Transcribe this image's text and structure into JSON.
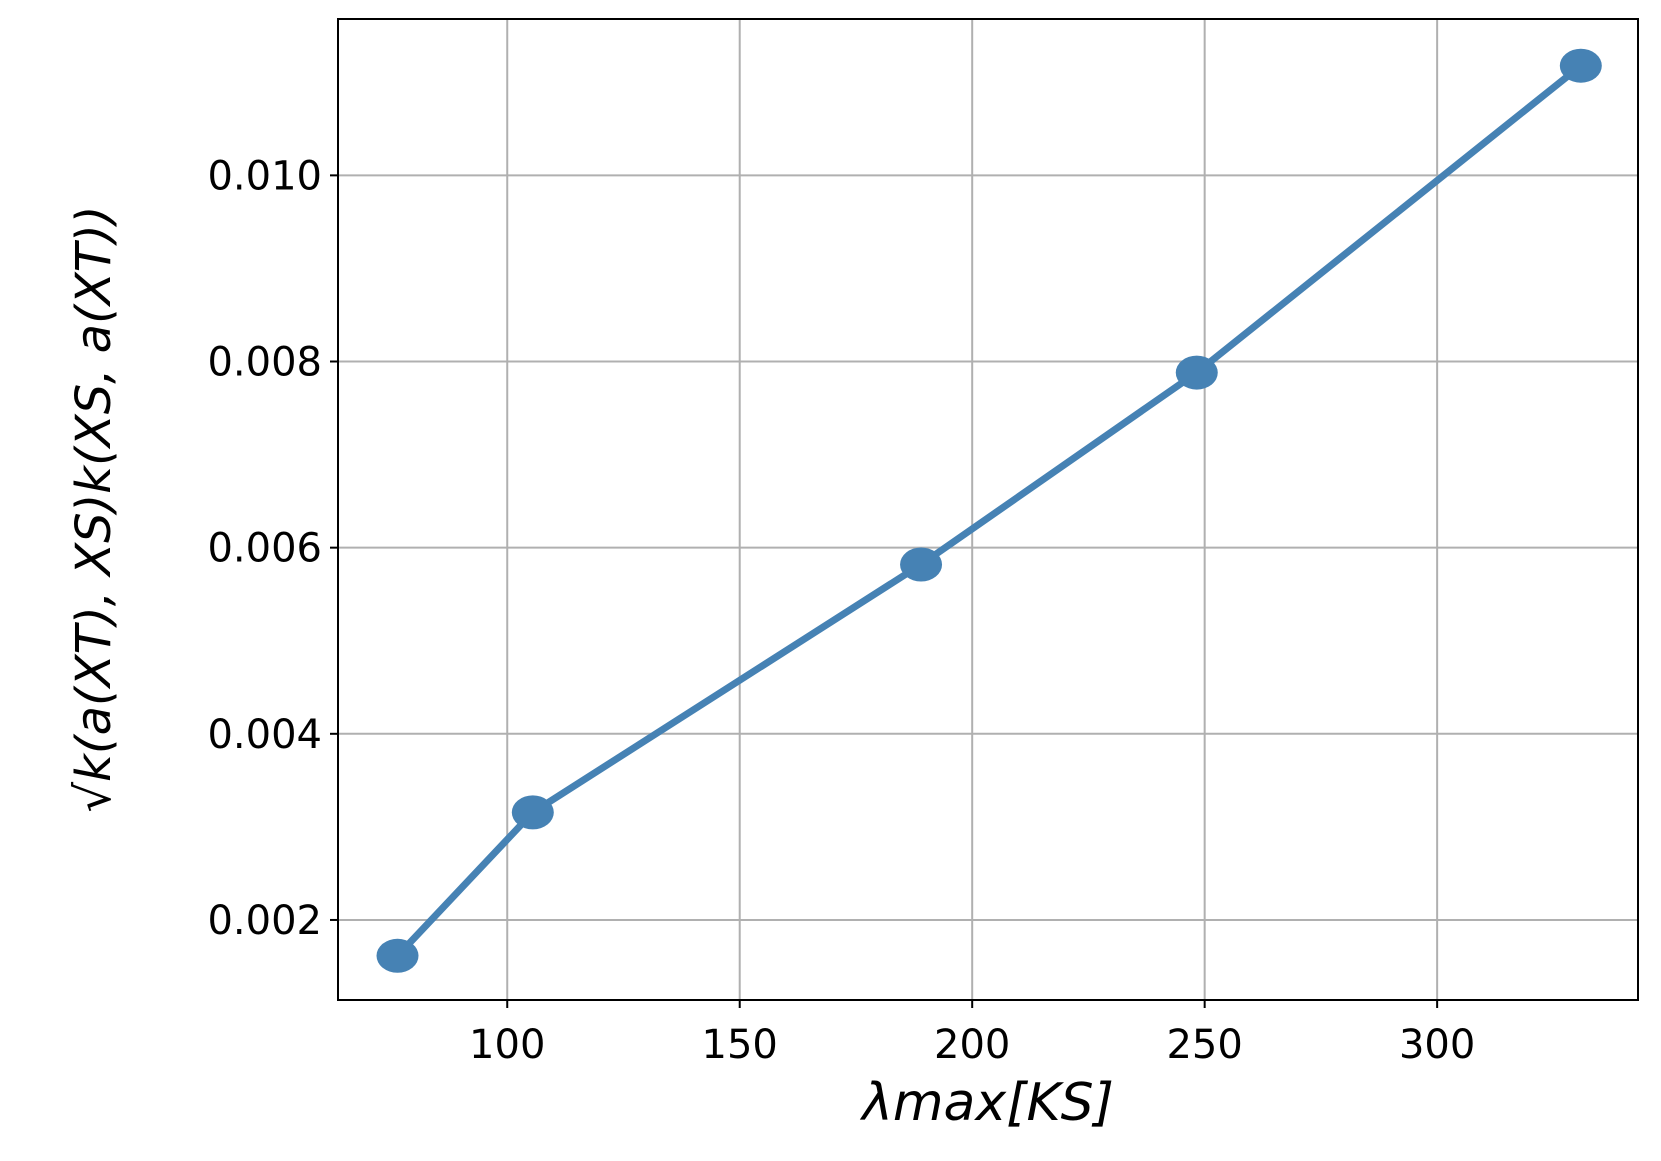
{
  "chart_data": {
    "type": "line",
    "xlabel": "λmax[KS]",
    "ylabel": "√k(a(XT), XS)k(XS, a(XT))",
    "x": [
      76.4,
      105.5,
      189.0,
      248.3,
      330.9
    ],
    "series": [
      {
        "color": "#4682b4",
        "values": [
          0.001615,
          0.003156,
          0.005819,
          0.007881,
          0.011178
        ]
      }
    ],
    "xlim": [
      63.6,
      343.2
    ],
    "xticks": [
      100,
      150,
      200,
      250,
      300
    ],
    "ylim": [
      0.00114,
      0.01168
    ],
    "yticks": [
      0.002,
      0.004,
      0.006,
      0.008,
      {
        "value": 0.01,
        "label": "0.010"
      }
    ],
    "grid": true,
    "markers": true
  }
}
